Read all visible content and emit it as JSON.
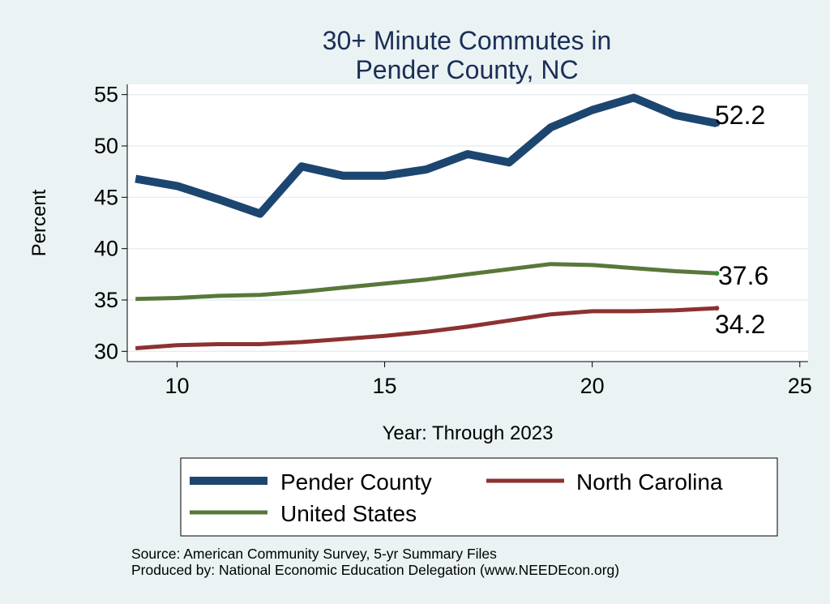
{
  "chart_data": {
    "type": "line",
    "title_lines": [
      "30+ Minute Commutes in",
      "Pender County, NC"
    ],
    "xlabel": "Year: Through 2023",
    "ylabel": "Percent",
    "xlim": [
      8.8,
      25.2
    ],
    "ylim": [
      29,
      56
    ],
    "xticks": [
      10,
      15,
      20,
      25
    ],
    "yticks": [
      30,
      35,
      40,
      45,
      50,
      55
    ],
    "grid": true,
    "legend_position": "bottom",
    "x": [
      9,
      10,
      11,
      12,
      13,
      14,
      15,
      16,
      17,
      18,
      19,
      20,
      21,
      22,
      23
    ],
    "series": [
      {
        "name": "Pender County",
        "color": "#1c4670",
        "values": [
          46.8,
          46.1,
          44.8,
          43.4,
          48.0,
          47.1,
          47.1,
          47.7,
          49.2,
          48.4,
          51.8,
          53.5,
          54.7,
          53.0,
          52.2
        ],
        "end_label": "52.2"
      },
      {
        "name": "North Carolina",
        "color": "#8d3131",
        "values": [
          30.3,
          30.6,
          30.7,
          30.7,
          30.9,
          31.2,
          31.5,
          31.9,
          32.4,
          33.0,
          33.6,
          33.9,
          33.9,
          34.0,
          34.2
        ],
        "end_label": "34.2"
      },
      {
        "name": "United States",
        "color": "#57783a",
        "values": [
          35.1,
          35.2,
          35.4,
          35.5,
          35.8,
          36.2,
          36.6,
          37.0,
          37.5,
          38.0,
          38.5,
          38.4,
          38.1,
          37.8,
          37.6
        ],
        "end_label": "37.6"
      }
    ],
    "source_lines": [
      "Source: American Community Survey, 5-yr Summary Files",
      "Produced by: National Economic Education Delegation (www.NEEDEcon.org)"
    ]
  }
}
